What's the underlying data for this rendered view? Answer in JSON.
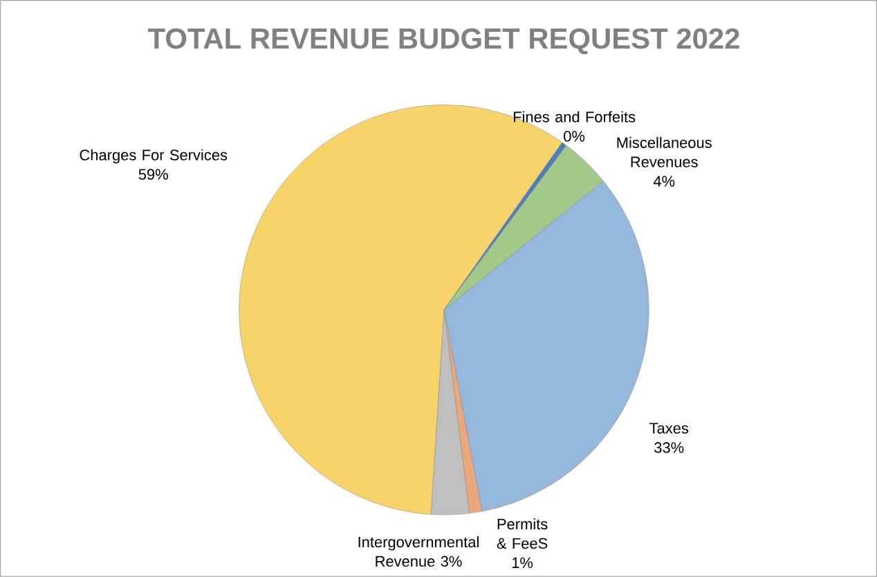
{
  "chart_data": {
    "type": "pie",
    "title": "TOTAL REVENUE BUDGET REQUEST 2022",
    "categories": [
      "Taxes",
      "Permits & FeeS",
      "Intergovernmental Revenue",
      "Charges For Services",
      "Fines and Forfeits",
      "Miscellaneous Revenues"
    ],
    "values": [
      33,
      1,
      3,
      59,
      0.4,
      4
    ],
    "value_labels": [
      "33%",
      "1%",
      "3%",
      "59%",
      "0%",
      "4%"
    ],
    "colors": [
      "#95b7dc",
      "#e9a87c",
      "#bfbfbf",
      "#f8d36a",
      "#4a7fb8",
      "#a2c98a"
    ]
  }
}
